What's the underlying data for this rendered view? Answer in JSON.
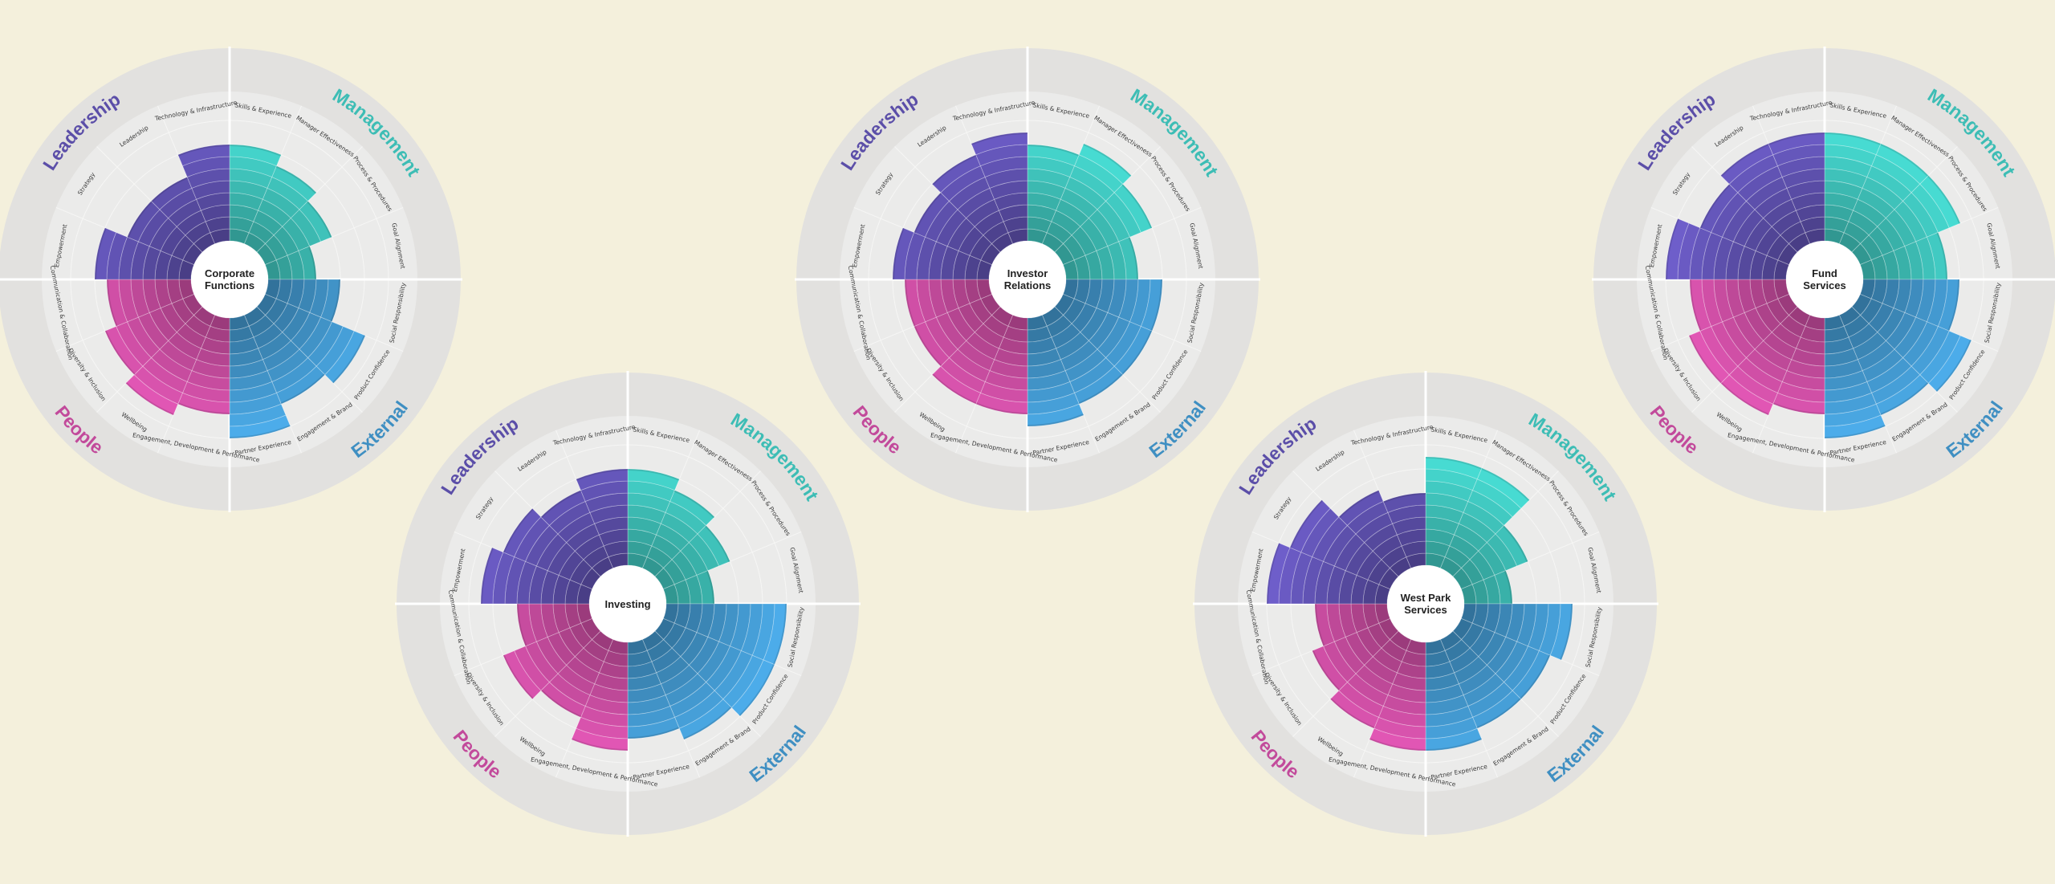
{
  "colors": {
    "background": "#f4f0dc",
    "outer_ring": "#e2e1df",
    "inner_disc": "#ebebea",
    "Leadership": "#5b4ea8",
    "Management": "#3dbdb5",
    "External": "#3f8fc2",
    "People": "#c24a9b"
  },
  "categories": [
    {
      "name": "Management",
      "color": "#3dbdb5"
    },
    {
      "name": "External",
      "color": "#3f8fc2"
    },
    {
      "name": "People",
      "color": "#c24a9b"
    },
    {
      "name": "Leadership",
      "color": "#5b4ea8"
    }
  ],
  "metrics": [
    {
      "label": "Skills & Experience",
      "category": "Management"
    },
    {
      "label": "Manager Effectiveness",
      "category": "Management"
    },
    {
      "label": "Process & Procedures",
      "category": "Management"
    },
    {
      "label": "Goal Alignment",
      "category": "Management"
    },
    {
      "label": "Social Responsibility",
      "category": "External"
    },
    {
      "label": "Product Confidence",
      "category": "External"
    },
    {
      "label": "Engagement & Brand",
      "category": "External"
    },
    {
      "label": "Partner Experience",
      "category": "External"
    },
    {
      "label": "Engagement, Development & Performance",
      "category": "People"
    },
    {
      "label": "Wellbeing",
      "category": "People"
    },
    {
      "label": "Diversity & Inclusion",
      "category": "People"
    },
    {
      "label": "Communication & Collaboration",
      "category": "People"
    },
    {
      "label": "Empowerment",
      "category": "Leadership"
    },
    {
      "label": "Strategy",
      "category": "Leadership"
    },
    {
      "label": "Leadership",
      "category": "Leadership"
    },
    {
      "label": "Technology & Infrastructure",
      "category": "Leadership"
    }
  ],
  "chart_data": [
    {
      "type": "polar-area",
      "title": "Corporate Functions",
      "scale_max": 5,
      "values": [
        4,
        3.5,
        3,
        2,
        3,
        4.5,
        4,
        5,
        4,
        4.5,
        4,
        3.5,
        4,
        3,
        3,
        4
      ]
    },
    {
      "type": "polar-area",
      "title": "Investor Relations",
      "scale_max": 5,
      "values": [
        4,
        4.5,
        4,
        3,
        4,
        4,
        4,
        4.5,
        4,
        4,
        3.5,
        3.5,
        4,
        3.5,
        4,
        4.5
      ]
    },
    {
      "type": "polar-area",
      "title": "Fund Services",
      "scale_max": 5,
      "values": [
        4.5,
        4.5,
        4.5,
        3.5,
        4,
        5,
        4.5,
        5,
        4,
        4.5,
        4.5,
        4,
        5,
        4,
        4.5,
        4.5
      ]
    },
    {
      "type": "polar-area",
      "title": "Investing",
      "scale_max": 5,
      "values": [
        4,
        3.5,
        3,
        2,
        5,
        5,
        4.5,
        4,
        4.5,
        3.5,
        4,
        3,
        4.5,
        4,
        3.5,
        4
      ]
    },
    {
      "type": "polar-area",
      "title": "West Park Services",
      "scale_max": 5,
      "values": [
        4.5,
        4.5,
        3,
        2,
        4.5,
        4,
        4,
        4.5,
        4.5,
        4,
        3.5,
        3,
        5,
        4.5,
        3.5,
        3
      ]
    }
  ]
}
